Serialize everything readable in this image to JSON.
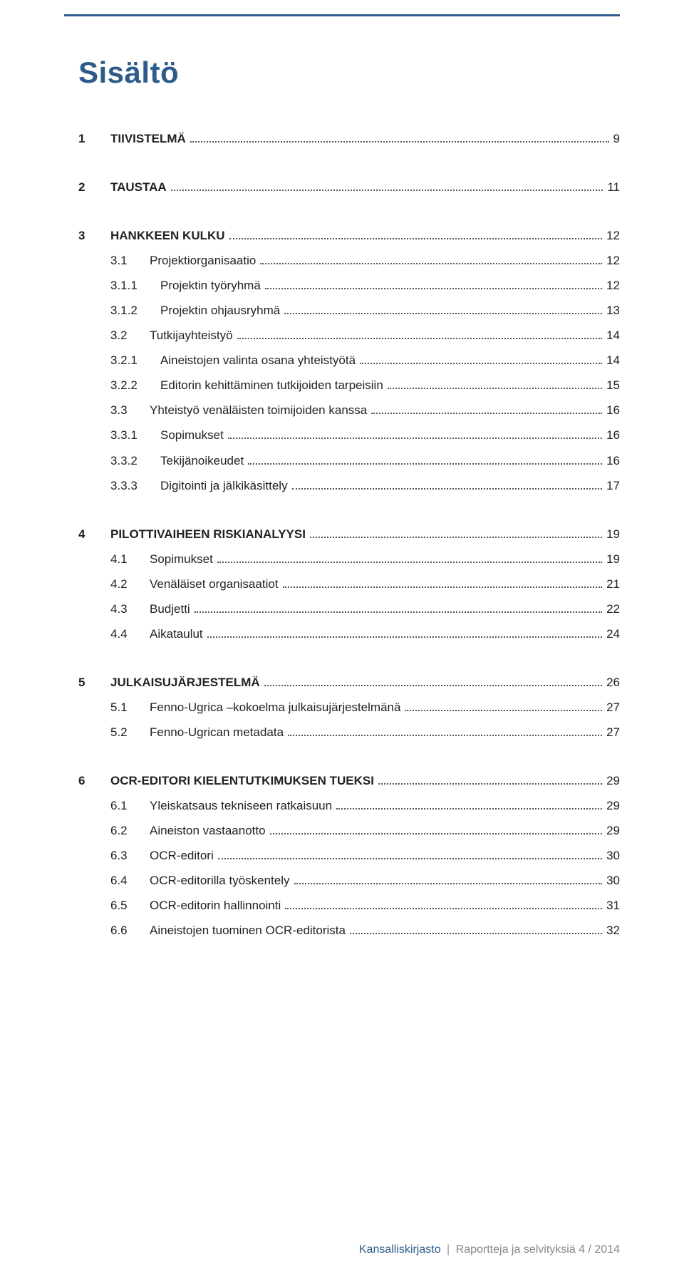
{
  "title": "Sisältö",
  "colors": {
    "accent": "#2e5c8a",
    "text": "#222222",
    "leader": "#555555",
    "footer_muted": "#888888",
    "background": "#ffffff"
  },
  "typography": {
    "title_fontsize_pt": 32,
    "body_fontsize_pt": 13,
    "footer_fontsize_pt": 12,
    "font_family": "Verdana"
  },
  "toc": [
    {
      "entries": [
        {
          "level": 1,
          "num": "1",
          "text": "TIIVISTELMÄ",
          "page": "9"
        }
      ]
    },
    {
      "entries": [
        {
          "level": 1,
          "num": "2",
          "text": "TAUSTAA",
          "page": "11"
        }
      ]
    },
    {
      "entries": [
        {
          "level": 1,
          "num": "3",
          "text": "HANKKEEN KULKU",
          "page": "12"
        },
        {
          "level": 2,
          "num": "3.1",
          "text": "Projektiorganisaatio",
          "page": "12"
        },
        {
          "level": 3,
          "num": "3.1.1",
          "text": "Projektin työryhmä",
          "page": "12"
        },
        {
          "level": 3,
          "num": "3.1.2",
          "text": "Projektin ohjausryhmä",
          "page": "13"
        },
        {
          "level": 2,
          "num": "3.2",
          "text": "Tutkijayhteistyö",
          "page": "14"
        },
        {
          "level": 3,
          "num": "3.2.1",
          "text": "Aineistojen valinta osana yhteistyötä",
          "page": "14"
        },
        {
          "level": 3,
          "num": "3.2.2",
          "text": "Editorin kehittäminen tutkijoiden tarpeisiin",
          "page": "15"
        },
        {
          "level": 2,
          "num": "3.3",
          "text": "Yhteistyö venäläisten toimijoiden kanssa",
          "page": "16"
        },
        {
          "level": 3,
          "num": "3.3.1",
          "text": "Sopimukset",
          "page": "16"
        },
        {
          "level": 3,
          "num": "3.3.2",
          "text": "Tekijänoikeudet",
          "page": "16"
        },
        {
          "level": 3,
          "num": "3.3.3",
          "text": "Digitointi ja jälkikäsittely",
          "page": "17"
        }
      ]
    },
    {
      "entries": [
        {
          "level": 1,
          "num": "4",
          "text": "PILOTTIVAIHEEN RISKIANALYYSI",
          "page": "19"
        },
        {
          "level": 2,
          "num": "4.1",
          "text": "Sopimukset",
          "page": "19"
        },
        {
          "level": 2,
          "num": "4.2",
          "text": "Venäläiset organisaatiot",
          "page": "21"
        },
        {
          "level": 2,
          "num": "4.3",
          "text": "Budjetti",
          "page": "22"
        },
        {
          "level": 2,
          "num": "4.4",
          "text": "Aikataulut",
          "page": "24"
        }
      ]
    },
    {
      "entries": [
        {
          "level": 1,
          "num": "5",
          "text": "JULKAISUJÄRJESTELMÄ",
          "page": "26"
        },
        {
          "level": 2,
          "num": "5.1",
          "text": "Fenno-Ugrica –kokoelma julkaisujärjestelmänä",
          "page": "27"
        },
        {
          "level": 2,
          "num": "5.2",
          "text": "Fenno-Ugrican metadata",
          "page": "27"
        }
      ]
    },
    {
      "entries": [
        {
          "level": 1,
          "num": "6",
          "text": "OCR-EDITORI KIELENTUTKIMUKSEN TUEKSI",
          "page": "29"
        },
        {
          "level": 2,
          "num": "6.1",
          "text": "Yleiskatsaus tekniseen ratkaisuun",
          "page": "29"
        },
        {
          "level": 2,
          "num": "6.2",
          "text": "Aineiston vastaanotto",
          "page": "29"
        },
        {
          "level": 2,
          "num": "6.3",
          "text": "OCR-editori",
          "page": "30"
        },
        {
          "level": 2,
          "num": "6.4",
          "text": "OCR-editorilla työskentely",
          "page": "30"
        },
        {
          "level": 2,
          "num": "6.5",
          "text": "OCR-editorin hallinnointi",
          "page": "31"
        },
        {
          "level": 2,
          "num": "6.6",
          "text": "Aineistojen tuominen OCR-editorista",
          "page": "32"
        }
      ]
    }
  ],
  "footer": {
    "org": "Kansalliskirjasto",
    "separator": "|",
    "series": "Raportteja ja selvityksiä 4 / 2014"
  }
}
